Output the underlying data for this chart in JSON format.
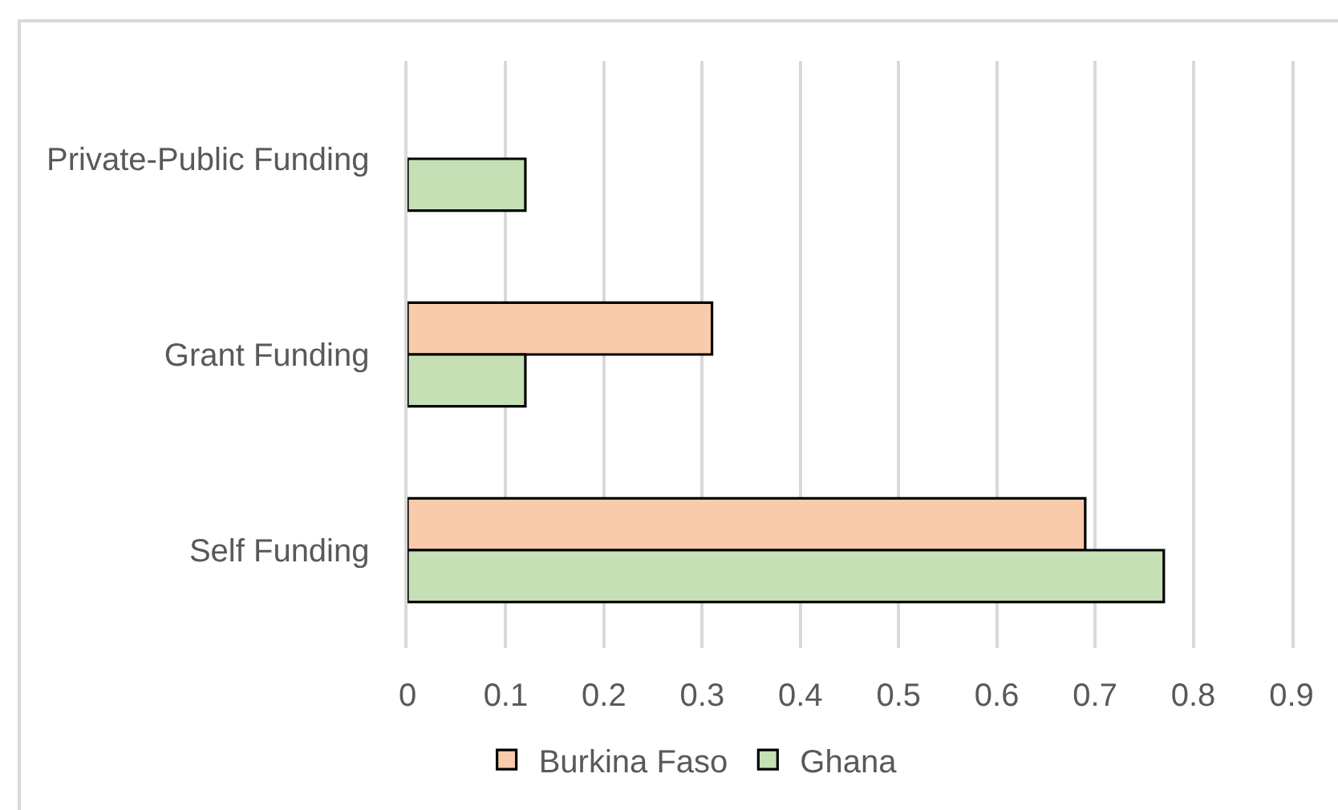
{
  "chart_data": {
    "type": "bar",
    "orientation": "horizontal",
    "categories": [
      "Private-Public Funding",
      "Grant Funding",
      "Self Funding"
    ],
    "series": [
      {
        "name": "Burkina Faso",
        "color": "#f8cbad",
        "values": [
          null,
          0.31,
          0.69
        ]
      },
      {
        "name": "Ghana",
        "color": "#c5e0b4",
        "values": [
          0.12,
          0.12,
          0.77
        ]
      }
    ],
    "xlim": [
      0,
      0.9
    ],
    "xticks": [
      0,
      0.1,
      0.2,
      0.3,
      0.4,
      0.5,
      0.6,
      0.7,
      0.8,
      0.9
    ],
    "grid": "x",
    "legend": "bottom"
  }
}
